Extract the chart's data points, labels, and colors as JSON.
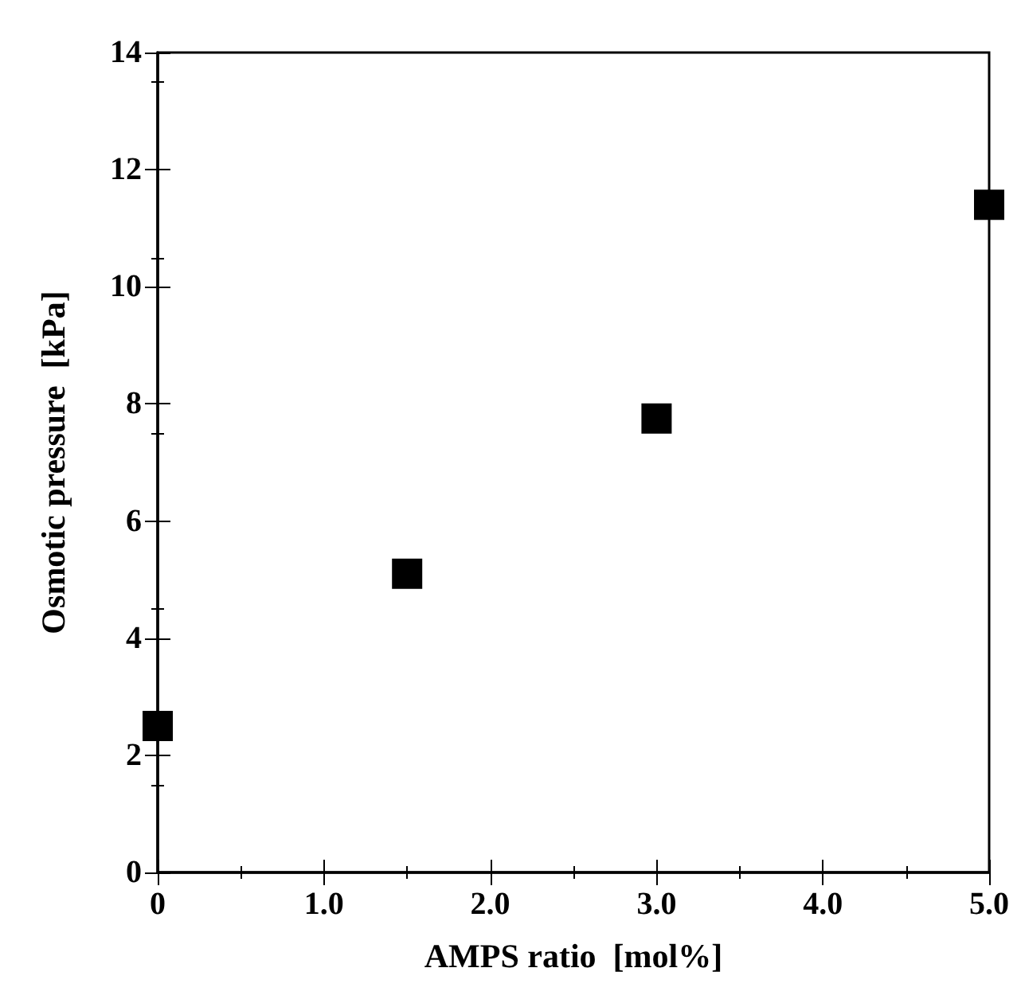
{
  "chart_data": {
    "type": "scatter",
    "xlabel": "AMPS ratio  [mol%]",
    "ylabel": "Osmotic pressure  [kPa]",
    "x": [
      0,
      1.5,
      3.0,
      5.0
    ],
    "series": [
      {
        "color": "#000000",
        "values": [
          2.5,
          5.1,
          7.75,
          11.4
        ]
      }
    ],
    "xlim": [
      0,
      5
    ],
    "xticks": [
      0,
      {
        "value": 1,
        "label": "1.0"
      },
      {
        "value": 2,
        "label": "2.0"
      },
      {
        "value": 3,
        "label": "3.0"
      },
      {
        "value": 4,
        "label": "4.0"
      },
      {
        "value": 5,
        "label": "5.0"
      }
    ],
    "ylim": [
      0,
      14
    ],
    "yticks": [
      0,
      2,
      4,
      6,
      8,
      10,
      12,
      14
    ],
    "marker": "square"
  }
}
